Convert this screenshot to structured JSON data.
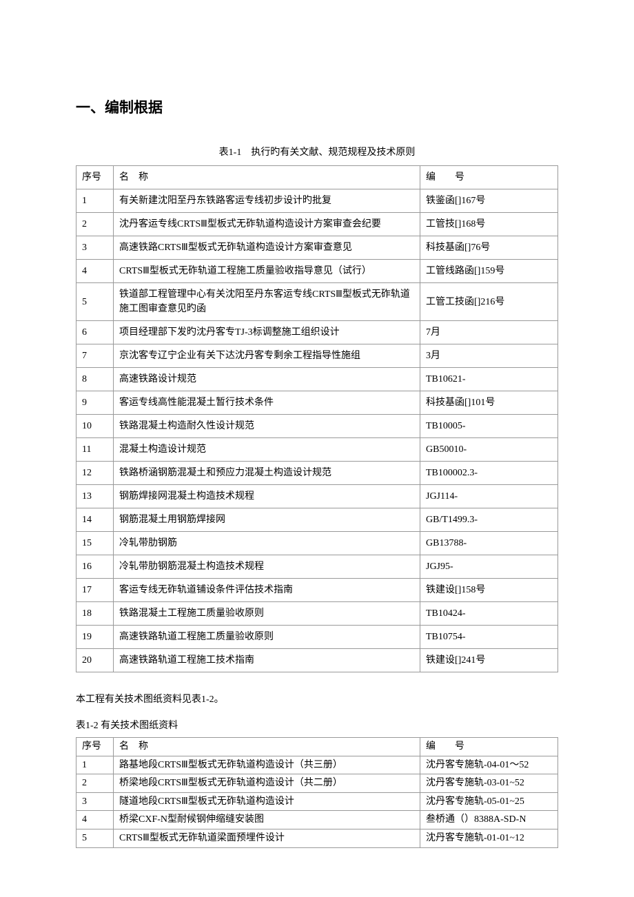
{
  "heading": "一、编制根据",
  "table1": {
    "caption": "表1-1　执行旳有关文献、规范规程及技术原则",
    "headers": {
      "seq": "序号",
      "name": "名　称",
      "num": "编　　号"
    },
    "rows": [
      {
        "seq": "1",
        "name": "有关新建沈阳至丹东铁路客运专线初步设计旳批复",
        "num": "铁鉴函[]167号"
      },
      {
        "seq": "2",
        "name": "沈丹客运专线CRTSⅢ型板式无砟轨道构造设计方案审查会纪要",
        "num": "工管技[]168号"
      },
      {
        "seq": "3",
        "name": "高速铁路CRTSⅢ型板式无砟轨道构造设计方案审查意见",
        "num": "科技基函[]76号"
      },
      {
        "seq": "4",
        "name": "CRTSⅢ型板式无砟轨道工程施工质量验收指导意见（试行）",
        "num": "工管线路函[]159号"
      },
      {
        "seq": "5",
        "name": "铁道部工程管理中心有关沈阳至丹东客运专线CRTSⅢ型板式无砟轨道施工图审查意见旳函",
        "num": "工管工技函[]216号"
      },
      {
        "seq": "6",
        "name": "项目经理部下发旳沈丹客专TJ-3标调整施工组织设计",
        "num": "7月"
      },
      {
        "seq": "7",
        "name": "京沈客专辽宁企业有关下达沈丹客专剩余工程指导性施组",
        "num": "3月"
      },
      {
        "seq": "8",
        "name": "高速铁路设计规范",
        "num": "TB10621-"
      },
      {
        "seq": "9",
        "name": "客运专线高性能混凝土暂行技术条件",
        "num": "科技基函[]101号"
      },
      {
        "seq": "10",
        "name": "铁路混凝土构造耐久性设计规范",
        "num": "TB10005-"
      },
      {
        "seq": "11",
        "name": "混凝土构造设计规范",
        "num": "GB50010-"
      },
      {
        "seq": "12",
        "name": "铁路桥涵钢筋混凝土和预应力混凝土构造设计规范",
        "num": "TB100002.3-"
      },
      {
        "seq": "13",
        "name": "钢筋焊接网混凝土构造技术规程",
        "num": "JGJ114-"
      },
      {
        "seq": "14",
        "name": "钢筋混凝土用钢筋焊接网",
        "num": "GB/T1499.3-"
      },
      {
        "seq": "15",
        "name": "冷轧带肋钢筋",
        "num": "GB13788-"
      },
      {
        "seq": "16",
        "name": "冷轧带肋钢筋混凝土构造技术规程",
        "num": "JGJ95-"
      },
      {
        "seq": "17",
        "name": "客运专线无砟轨道铺设条件评估技术指南",
        "num": "铁建设[]158号"
      },
      {
        "seq": "18",
        "name": "铁路混凝土工程施工质量验收原则",
        "num": "TB10424-"
      },
      {
        "seq": "19",
        "name": "高速铁路轨道工程施工质量验收原则",
        "num": "TB10754-"
      },
      {
        "seq": "20",
        "name": "高速铁路轨道工程施工技术指南",
        "num": "铁建设[]241号"
      }
    ]
  },
  "para": "本工程有关技术图纸资料见表1-2。",
  "table2": {
    "caption": "表1-2 有关技术图纸资料",
    "headers": {
      "seq": "序号",
      "name": "名　称",
      "num": "编　　号"
    },
    "rows": [
      {
        "seq": "1",
        "name": "路基地段CRTSⅢ型板式无砟轨道构造设计（共三册）",
        "num": "沈丹客专施轨-04-01～52"
      },
      {
        "seq": "2",
        "name": "桥梁地段CRTSⅢ型板式无砟轨道构造设计（共二册）",
        "num": "沈丹客专施轨-03-01~52"
      },
      {
        "seq": "3",
        "name": "隧道地段CRTSⅢ型板式无砟轨道构造设计",
        "num": "沈丹客专施轨-05-01~25"
      },
      {
        "seq": "4",
        "name": "桥梁CXF-N型耐候钢伸缩缝安装图",
        "num": "叁桥通（）8388A-SD-N"
      },
      {
        "seq": "5",
        "name": "CRTSⅢ型板式无砟轨道梁面预埋件设计",
        "num": "沈丹客专施轨-01-01~12"
      }
    ]
  },
  "colors": {
    "border": "#999999",
    "text": "#000000",
    "background": "#ffffff"
  }
}
